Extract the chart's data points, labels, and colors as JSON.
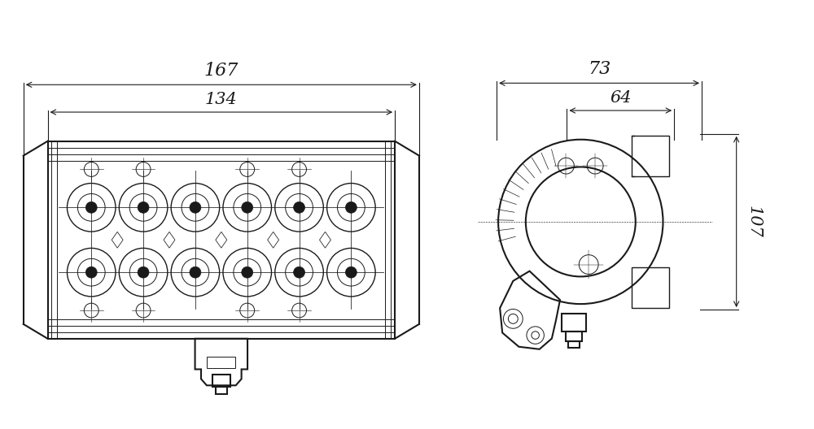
{
  "bg_color": "#ffffff",
  "line_color": "#1a1a1a",
  "fig_width": 10.0,
  "fig_height": 5.28,
  "labels": {
    "167": "167",
    "134": "134",
    "73": "73",
    "64": "64",
    "107": "107"
  }
}
